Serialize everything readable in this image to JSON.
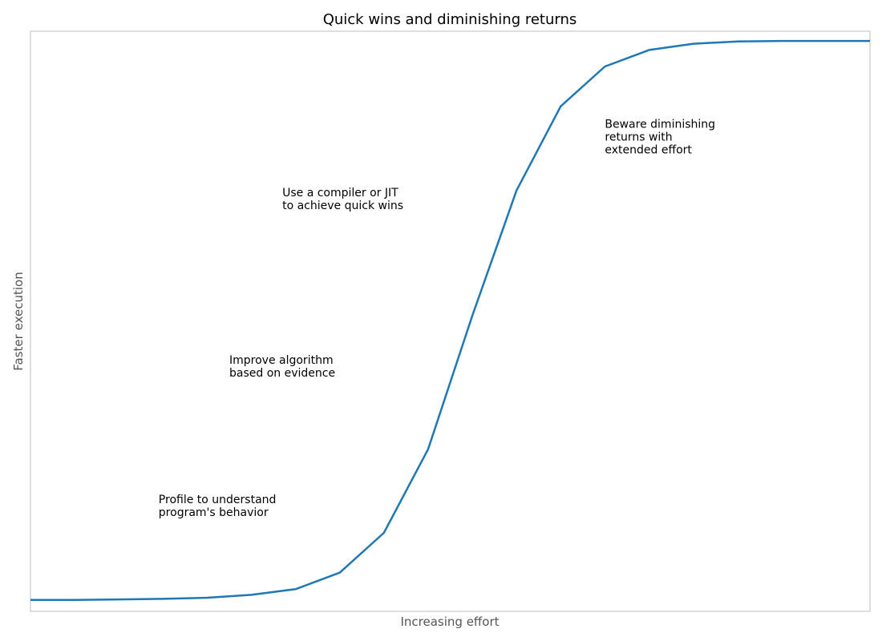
{
  "chart_data": {
    "type": "line",
    "title": "Quick wins and diminishing returns",
    "xlabel": "Increasing effort",
    "ylabel": "Faster execution",
    "xlim": [
      0,
      19
    ],
    "ylim": [
      -0.02,
      1.0
    ],
    "grid": false,
    "legend": "none",
    "color": "#1f77b4",
    "series": [
      {
        "x": [
          0,
          1,
          2,
          3,
          4,
          5,
          6,
          7,
          8,
          9,
          10,
          11,
          12,
          13,
          14,
          15,
          16,
          17,
          18,
          19
        ],
        "values": [
          0.0,
          0.0,
          0.001,
          0.002,
          0.004,
          0.009,
          0.019,
          0.048,
          0.118,
          0.265,
          0.5,
          0.72,
          0.868,
          0.938,
          0.967,
          0.978,
          0.982,
          0.983,
          0.983,
          0.983
        ]
      }
    ],
    "annotations": [
      {
        "name": "annotation-profile",
        "lines": [
          "Profile to understand",
          "program's behavior"
        ],
        "x": 2.9,
        "y": 0.17
      },
      {
        "name": "annotation-algorithm",
        "lines": [
          "Improve algorithm",
          "based on evidence"
        ],
        "x": 4.5,
        "y": 0.415
      },
      {
        "name": "annotation-compiler",
        "lines": [
          "Use a compiler or JIT",
          "to achieve quick wins"
        ],
        "x": 5.7,
        "y": 0.71
      },
      {
        "name": "annotation-diminishing",
        "lines": [
          "Beware diminishing",
          "returns with",
          "extended effort"
        ],
        "x": 13.0,
        "y": 0.83
      }
    ]
  }
}
